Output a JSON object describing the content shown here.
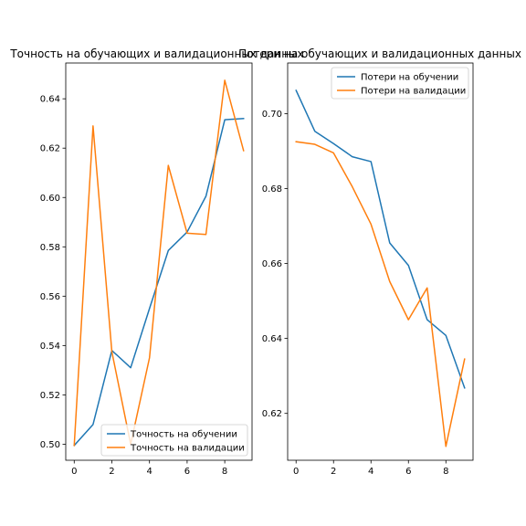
{
  "chart_data": [
    {
      "type": "line",
      "title": "Точность на обучающих и валидационных данных",
      "xlabel": "",
      "ylabel": "",
      "x": [
        0,
        1,
        2,
        3,
        4,
        5,
        6,
        7,
        8,
        9
      ],
      "xticks": [
        0,
        2,
        4,
        6,
        8
      ],
      "xlim": [
        -0.45,
        9.45
      ],
      "ylim": [
        0.4935,
        0.6545
      ],
      "yticks": [
        0.5,
        0.52,
        0.54,
        0.56,
        0.58,
        0.6,
        0.62,
        0.64
      ],
      "ytick_decimals": 2,
      "legend_position": "lower right",
      "grid": false,
      "series": [
        {
          "name": "Точность на обучении",
          "color": "#1f77b4",
          "values": [
            0.4995,
            0.508,
            0.538,
            0.531,
            0.555,
            0.5785,
            0.586,
            0.6005,
            0.6315,
            0.632
          ]
        },
        {
          "name": "Точность на валидации",
          "color": "#ff7f0e",
          "values": [
            0.4995,
            0.629,
            0.5375,
            0.5,
            0.535,
            0.613,
            0.5855,
            0.585,
            0.6475,
            0.619
          ]
        }
      ]
    },
    {
      "type": "line",
      "title": "Потери на обучающих и валидационных данных",
      "xlabel": "",
      "ylabel": "",
      "x": [
        0,
        1,
        2,
        3,
        4,
        5,
        6,
        7,
        8,
        9
      ],
      "xticks": [
        0,
        2,
        4,
        6,
        8
      ],
      "xlim": [
        -0.45,
        9.45
      ],
      "ylim": [
        0.6075,
        0.7135
      ],
      "yticks": [
        0.62,
        0.64,
        0.66,
        0.68,
        0.7
      ],
      "ytick_decimals": 2,
      "legend_position": "upper right",
      "grid": false,
      "series": [
        {
          "name": "Потери на обучении",
          "color": "#1f77b4",
          "values": [
            0.7062,
            0.6953,
            0.692,
            0.6885,
            0.6872,
            0.6655,
            0.6595,
            0.645,
            0.6408,
            0.6268
          ]
        },
        {
          "name": "Потери на валидации",
          "color": "#ff7f0e",
          "values": [
            0.6925,
            0.6918,
            0.6895,
            0.6805,
            0.6705,
            0.6552,
            0.645,
            0.6535,
            0.6112,
            0.6345
          ]
        }
      ]
    }
  ]
}
